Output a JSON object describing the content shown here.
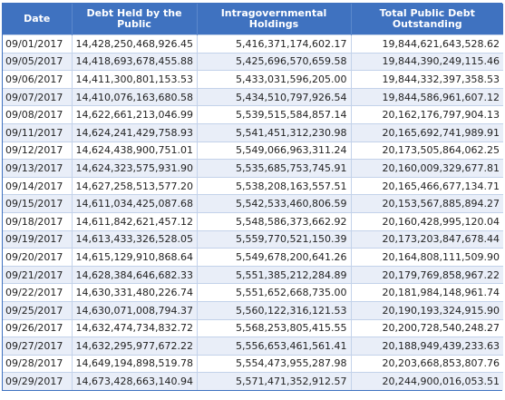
{
  "table": {
    "columns": [
      "Date",
      "Debt Held by the Public",
      "Intragovernmental Holdings",
      "Total Public Debt Outstanding"
    ],
    "rows": [
      [
        "09/01/2017",
        "14,428,250,468,926.45",
        "5,416,371,174,602.17",
        "19,844,621,643,528.62"
      ],
      [
        "09/05/2017",
        "14,418,693,678,455.88",
        "5,425,696,570,659.58",
        "19,844,390,249,115.46"
      ],
      [
        "09/06/2017",
        "14,411,300,801,153.53",
        "5,433,031,596,205.00",
        "19,844,332,397,358.53"
      ],
      [
        "09/07/2017",
        "14,410,076,163,680.58",
        "5,434,510,797,926.54",
        "19,844,586,961,607.12"
      ],
      [
        "09/08/2017",
        "14,622,661,213,046.99",
        "5,539,515,584,857.14",
        "20,162,176,797,904.13"
      ],
      [
        "09/11/2017",
        "14,624,241,429,758.93",
        "5,541,451,312,230.98",
        "20,165,692,741,989.91"
      ],
      [
        "09/12/2017",
        "14,624,438,900,751.01",
        "5,549,066,963,311.24",
        "20,173,505,864,062.25"
      ],
      [
        "09/13/2017",
        "14,624,323,575,931.90",
        "5,535,685,753,745.91",
        "20,160,009,329,677.81"
      ],
      [
        "09/14/2017",
        "14,627,258,513,577.20",
        "5,538,208,163,557.51",
        "20,165,466,677,134.71"
      ],
      [
        "09/15/2017",
        "14,611,034,425,087.68",
        "5,542,533,460,806.59",
        "20,153,567,885,894.27"
      ],
      [
        "09/18/2017",
        "14,611,842,621,457.12",
        "5,548,586,373,662.92",
        "20,160,428,995,120.04"
      ],
      [
        "09/19/2017",
        "14,613,433,326,528.05",
        "5,559,770,521,150.39",
        "20,173,203,847,678.44"
      ],
      [
        "09/20/2017",
        "14,615,129,910,868.64",
        "5,549,678,200,641.26",
        "20,164,808,111,509.90"
      ],
      [
        "09/21/2017",
        "14,628,384,646,682.33",
        "5,551,385,212,284.89",
        "20,179,769,858,967.22"
      ],
      [
        "09/22/2017",
        "14,630,331,480,226.74",
        "5,551,652,668,735.00",
        "20,181,984,148,961.74"
      ],
      [
        "09/25/2017",
        "14,630,071,008,794.37",
        "5,560,122,316,121.53",
        "20,190,193,324,915.90"
      ],
      [
        "09/26/2017",
        "14,632,474,734,832.72",
        "5,568,253,805,415.55",
        "20,200,728,540,248.27"
      ],
      [
        "09/27/2017",
        "14,632,295,977,672.22",
        "5,556,653,461,561.41",
        "20,188,949,439,233.63"
      ],
      [
        "09/28/2017",
        "14,649,194,898,519.78",
        "5,554,473,955,287.98",
        "20,203,668,853,807.76"
      ],
      [
        "09/29/2017",
        "14,673,428,663,140.94",
        "5,571,471,352,912.57",
        "20,244,900,016,053.51"
      ]
    ]
  },
  "colors": {
    "header_bg": "#3f72c0",
    "header_text": "#ffffff",
    "row_alt": "#e9eef8",
    "border": "#3f72c0"
  }
}
